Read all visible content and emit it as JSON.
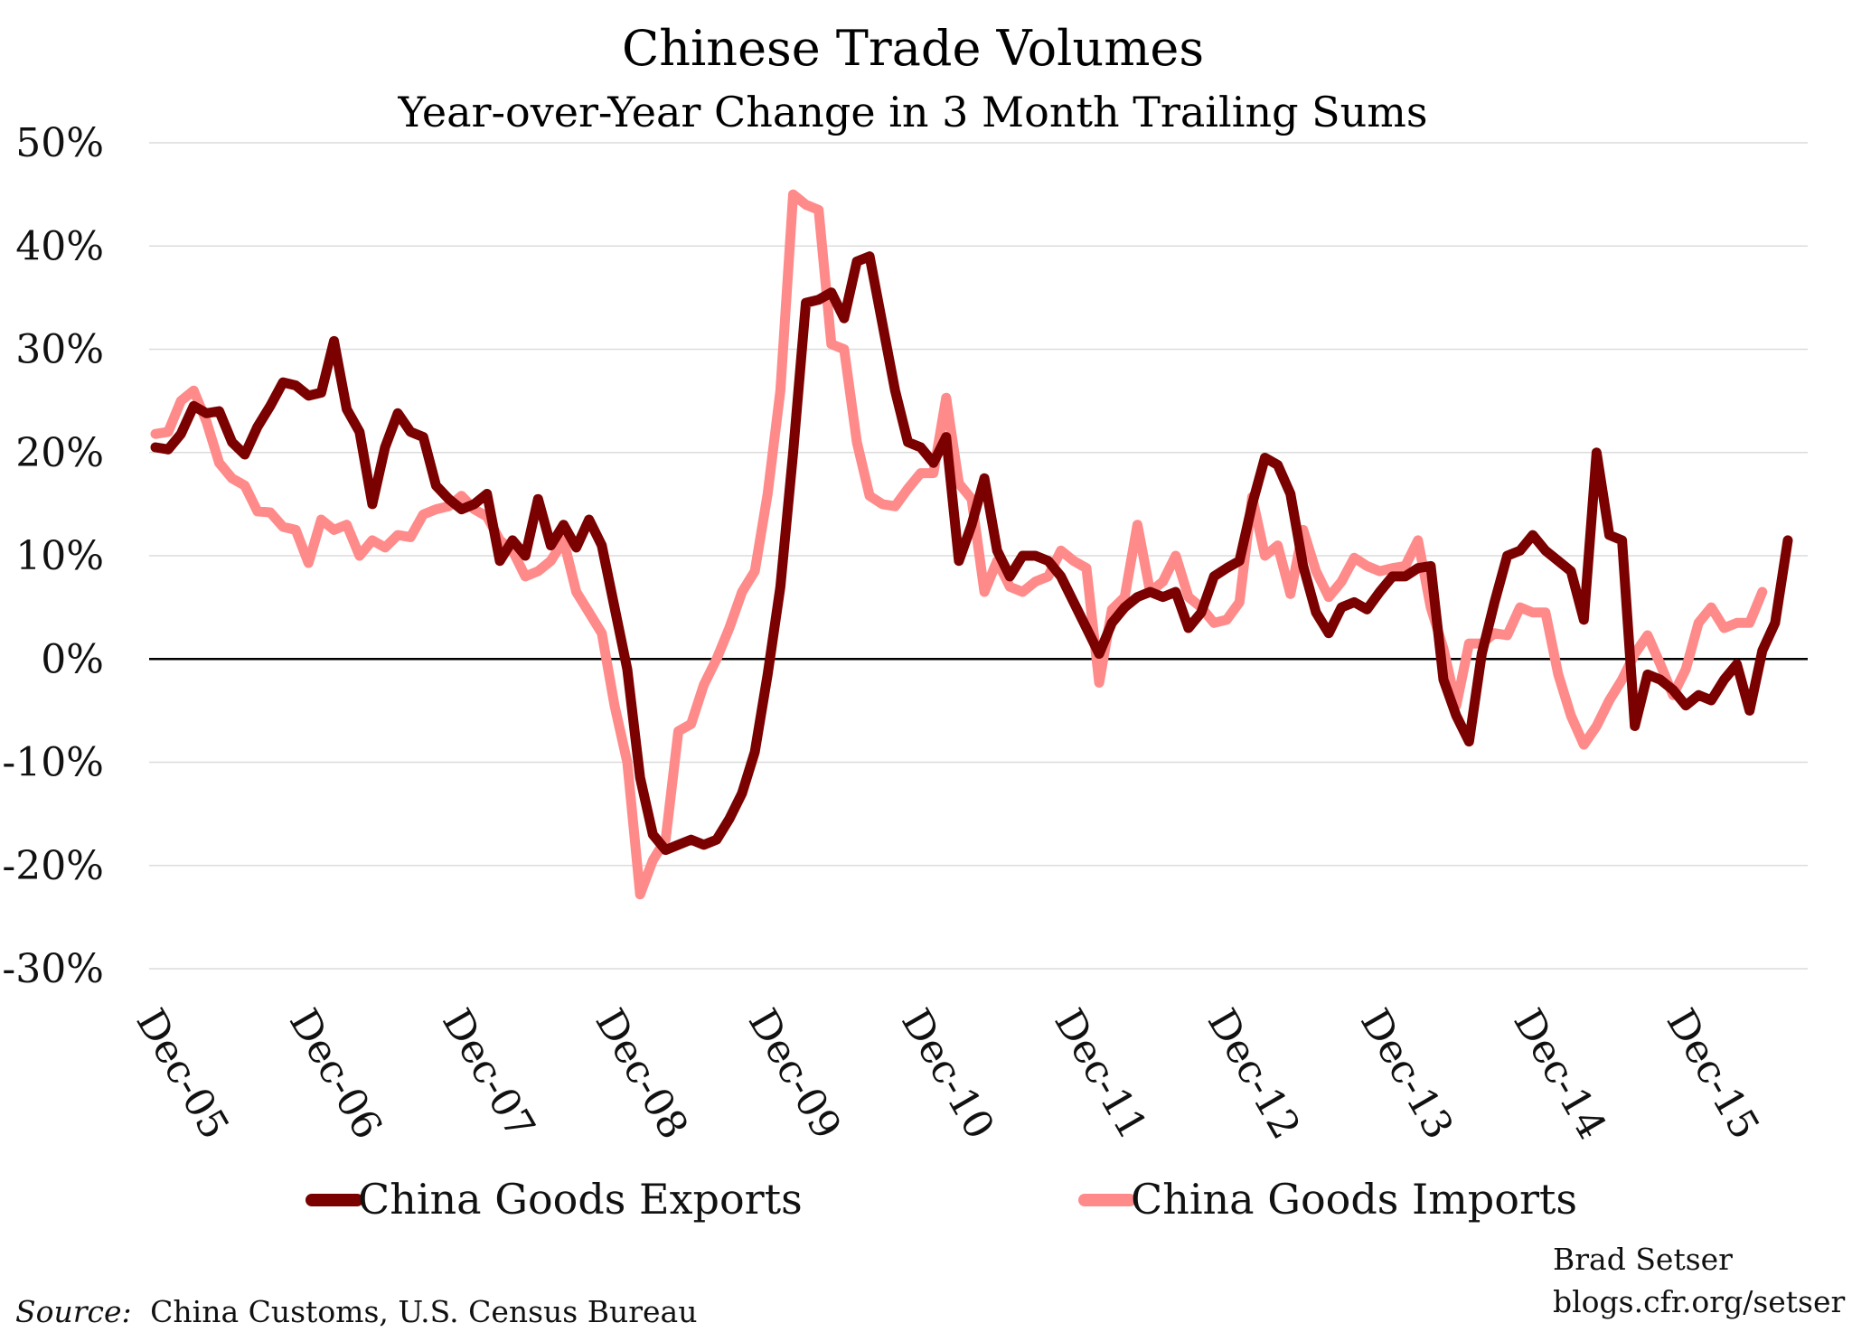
{
  "chart_data": {
    "type": "line",
    "title": "Chinese Trade Volumes",
    "subtitle": "Year-over-Year Change in 3 Month Trailing Sums",
    "xlabel": "",
    "ylabel": "",
    "ylim": [
      -30,
      50
    ],
    "yticks": [
      "50%",
      "40%",
      "30%",
      "20%",
      "10%",
      "0%",
      "-10%",
      "-20%",
      "-30%"
    ],
    "ytick_values": [
      50,
      40,
      30,
      20,
      10,
      0,
      -10,
      -20,
      -30
    ],
    "x_start": "Dec-05",
    "x_end": "Jun-16",
    "xtick_labels": [
      "Dec-05",
      "Dec-06",
      "Dec-07",
      "Dec-08",
      "Dec-09",
      "Dec-10",
      "Dec-11",
      "Dec-12",
      "Dec-13",
      "Dec-14",
      "Dec-15"
    ],
    "grid": true,
    "legend_position": "bottom",
    "series": [
      {
        "name": "China Goods Exports",
        "color": "#7b0000",
        "values": [
          20.5,
          20.3,
          21.8,
          24.5,
          23.8,
          24.0,
          21.0,
          19.8,
          22.5,
          24.5,
          26.8,
          26.5,
          25.5,
          25.8,
          30.8,
          24.2,
          22.0,
          15.0,
          20.5,
          23.8,
          22.0,
          21.5,
          16.8,
          15.5,
          14.5,
          15.0,
          16.0,
          9.5,
          11.5,
          10.0,
          15.5,
          11.0,
          13.0,
          10.8,
          13.5,
          11.0,
          5.0,
          -1.0,
          -11.5,
          -17.0,
          -18.5,
          -18.0,
          -17.5,
          -18.0,
          -17.5,
          -15.5,
          -13.0,
          -9.0,
          -1.5,
          7.0,
          20.0,
          34.5,
          34.8,
          35.5,
          33.0,
          38.5,
          39.0,
          32.5,
          26.0,
          21.0,
          20.5,
          19.0,
          21.5,
          9.5,
          13.0,
          17.5,
          10.5,
          8.0,
          10.0,
          10.0,
          9.5,
          8.0,
          5.5,
          3.0,
          0.5,
          3.5,
          5.0,
          6.0,
          6.5,
          6.0,
          6.5,
          3.0,
          4.5,
          8.0,
          8.8,
          9.5,
          15.0,
          19.5,
          18.8,
          16.0,
          9.0,
          4.5,
          2.5,
          5.0,
          5.5,
          4.8,
          6.5,
          8.0,
          8.0,
          8.8,
          9.0,
          -2.0,
          -5.5,
          -8.0,
          0.5,
          5.5,
          10.0,
          10.5,
          12.0,
          10.5,
          9.5,
          8.5,
          3.8,
          20.0,
          12.0,
          11.5,
          -6.5,
          -1.5,
          -2.0,
          -3.0,
          -4.5,
          -3.5,
          -4.0,
          -2.0,
          -0.5,
          -5.0,
          0.8,
          3.5,
          11.5
        ]
      },
      {
        "name": "China Goods Imports",
        "color": "#ff8a8a",
        "values": [
          21.8,
          22.0,
          25.0,
          26.0,
          23.0,
          19.0,
          17.5,
          16.8,
          14.3,
          14.2,
          12.8,
          12.5,
          9.3,
          13.5,
          12.5,
          13.0,
          10.0,
          11.5,
          10.8,
          12.0,
          11.8,
          14.0,
          14.5,
          14.8,
          15.8,
          14.5,
          13.8,
          11.5,
          10.5,
          8.0,
          8.5,
          9.5,
          11.5,
          6.5,
          4.5,
          2.5,
          -4.5,
          -10.0,
          -22.8,
          -19.5,
          -17.5,
          -7.0,
          -6.3,
          -2.5,
          0.0,
          3.0,
          6.5,
          8.5,
          16.0,
          26.0,
          45.0,
          44.0,
          43.5,
          30.5,
          30.0,
          21.0,
          15.8,
          15.0,
          14.8,
          16.5,
          18.0,
          18.0,
          25.3,
          17.0,
          15.5,
          6.5,
          9.5,
          7.0,
          6.5,
          7.5,
          8.0,
          10.5,
          9.5,
          8.8,
          -2.3,
          4.8,
          6.0,
          13.0,
          6.5,
          7.5,
          10.0,
          6.0,
          5.0,
          3.5,
          3.8,
          5.5,
          15.7,
          10.0,
          11.0,
          6.3,
          12.5,
          8.5,
          6.0,
          7.5,
          9.8,
          9.0,
          8.5,
          8.8,
          9.0,
          11.5,
          5.0,
          1.0,
          -4.5,
          1.5,
          1.5,
          2.5,
          2.3,
          5.0,
          4.5,
          4.5,
          -1.5,
          -5.5,
          -8.3,
          -6.5,
          -4.0,
          -2.0,
          0.5,
          2.3,
          -0.5,
          -3.5,
          -1.0,
          3.5,
          5.0,
          3.0,
          3.5,
          3.5,
          6.5
        ]
      }
    ],
    "source_label": "Source:",
    "source_text": "China Customs, U.S. Census Bureau",
    "credit_lines": [
      "Brad Setser",
      "blogs.cfr.org/setser"
    ]
  }
}
